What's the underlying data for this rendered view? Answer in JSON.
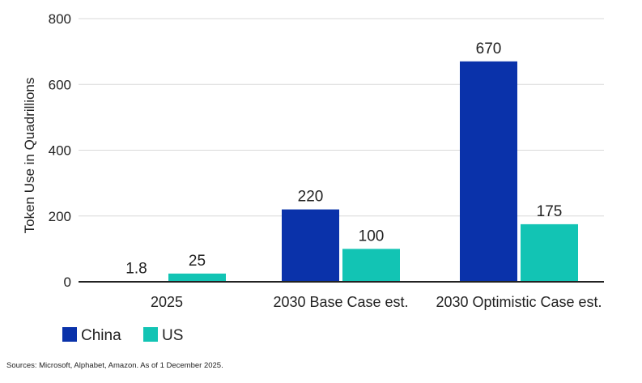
{
  "chart_data": {
    "type": "bar",
    "categories": [
      "2025",
      "2030 Base Case est.",
      "2030 Optimistic Case est."
    ],
    "series": [
      {
        "name": "China",
        "values": [
          1.8,
          220,
          670
        ],
        "color": "#0A32AA"
      },
      {
        "name": "US",
        "values": [
          25,
          100,
          175
        ],
        "color": "#12C4B4"
      }
    ],
    "data_labels": [
      [
        "1.8",
        "220",
        "670"
      ],
      [
        "25",
        "100",
        "175"
      ]
    ],
    "ylabel": "Token Use in Quadrillions",
    "ylim": [
      0,
      800
    ],
    "yticks": [
      0,
      200,
      400,
      600,
      800
    ],
    "ytick_labels": [
      "0",
      "200",
      "400",
      "600",
      "800"
    ],
    "grid": true,
    "legend_position": "bottom-left"
  },
  "source_note": "Sources: Microsoft, Alphabet, Amazon. As of 1 December 2025."
}
